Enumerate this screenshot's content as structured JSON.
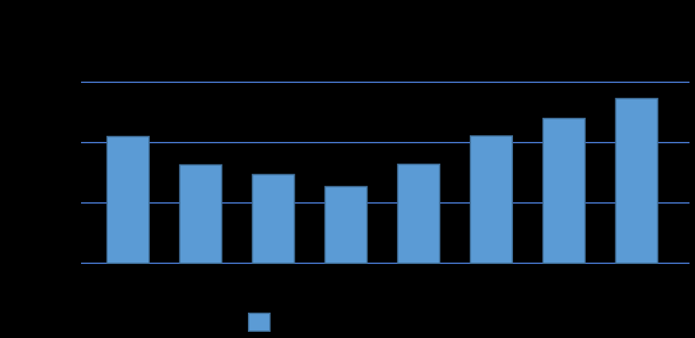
{
  "chart_data": {
    "type": "bar",
    "title": "",
    "xlabel": "",
    "ylabel": "",
    "categories": [
      "",
      "",
      "",
      "",
      "",
      "",
      "",
      ""
    ],
    "values": [
      2.1,
      1.63,
      1.47,
      1.27,
      1.64,
      2.11,
      2.4,
      2.73
    ],
    "ylim": [
      0,
      3
    ],
    "gridlines": [
      0,
      1,
      2,
      3
    ],
    "grid": true,
    "legend": "bottom",
    "colors": {
      "background": "#000000",
      "bar_fill": "#5b9bd5",
      "bar_stroke": "#41719c",
      "grid": "#4472c4"
    }
  }
}
